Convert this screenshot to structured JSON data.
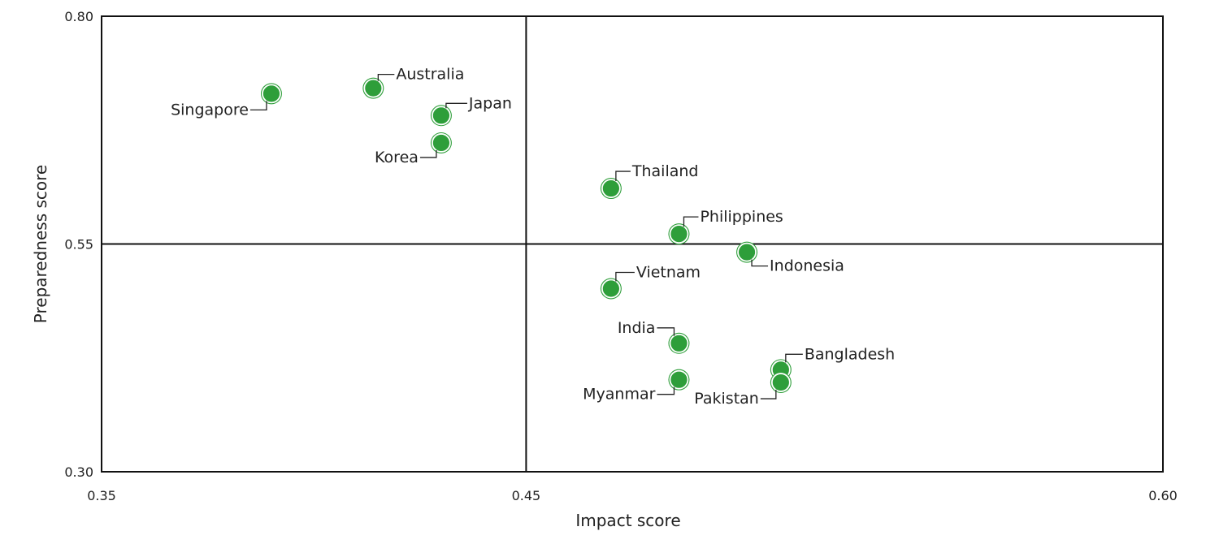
{
  "chart_data": {
    "type": "scatter",
    "xlabel": "Impact score",
    "ylabel": "Preparedness score",
    "xlim": [
      0.35,
      0.6
    ],
    "ylim": [
      0.3,
      0.8
    ],
    "xticks": [
      "0.35",
      "0.45",
      "0.60"
    ],
    "yticks": [
      "0.30",
      "0.55",
      "0.80"
    ],
    "quadrant_lines": {
      "x": 0.45,
      "y": 0.55
    },
    "grid": false,
    "legend": "none",
    "marker_color": "#2e9e3a",
    "points": [
      {
        "label": "Singapore",
        "x": 0.39,
        "y": 0.715
      },
      {
        "label": "Australia",
        "x": 0.414,
        "y": 0.721
      },
      {
        "label": "Japan",
        "x": 0.43,
        "y": 0.691
      },
      {
        "label": "Korea",
        "x": 0.43,
        "y": 0.661
      },
      {
        "label": "Thailand",
        "x": 0.47,
        "y": 0.611
      },
      {
        "label": "Philippines",
        "x": 0.486,
        "y": 0.561
      },
      {
        "label": "Indonesia",
        "x": 0.502,
        "y": 0.541
      },
      {
        "label": "Vietnam",
        "x": 0.47,
        "y": 0.501
      },
      {
        "label": "India",
        "x": 0.486,
        "y": 0.441
      },
      {
        "label": "Bangladesh",
        "x": 0.51,
        "y": 0.412
      },
      {
        "label": "Myanmar",
        "x": 0.486,
        "y": 0.401
      },
      {
        "label": "Pakistan",
        "x": 0.51,
        "y": 0.398
      }
    ]
  }
}
